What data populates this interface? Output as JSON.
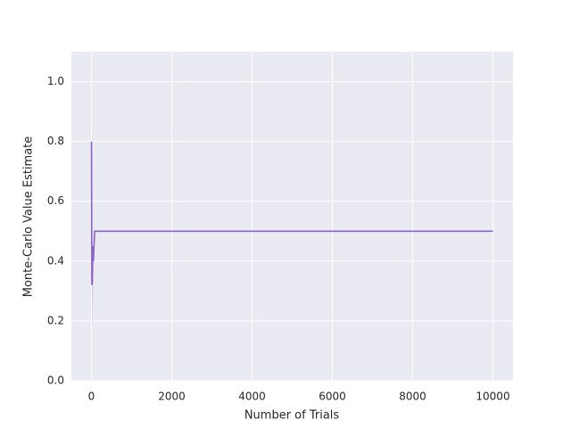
{
  "chart_data": {
    "type": "line",
    "x_label": "Number of Trials",
    "y_label": "Monte-Carlo Value Estimate",
    "x": [
      1,
      5,
      10,
      20,
      30,
      40,
      50,
      60,
      80,
      100,
      10000
    ],
    "series": [
      {
        "color": "#8e63c4",
        "values": [
          0.8,
          0.6,
          0.32,
          0.33,
          0.42,
          0.45,
          0.4,
          0.44,
          0.5,
          0.5,
          0.5
        ]
      }
    ],
    "band": {
      "x": [
        10,
        20,
        30,
        40,
        50,
        60,
        80
      ],
      "lower": [
        0.3,
        0.17,
        0.25,
        0.3,
        0.35,
        0.4,
        0.5
      ],
      "upper": [
        0.34,
        0.36,
        0.45,
        0.45,
        0.42,
        0.46,
        0.5
      ]
    },
    "xlim": [
      -500,
      10500
    ],
    "ylim": [
      0,
      1.1
    ],
    "xticks": [
      0,
      2000,
      4000,
      6000,
      8000,
      10000
    ],
    "yticks": [
      {
        "value": 0,
        "label": "0.0"
      },
      0.2,
      0.4,
      0.6,
      0.8,
      {
        "value": 1,
        "label": "1.0"
      }
    ],
    "grid": true
  }
}
